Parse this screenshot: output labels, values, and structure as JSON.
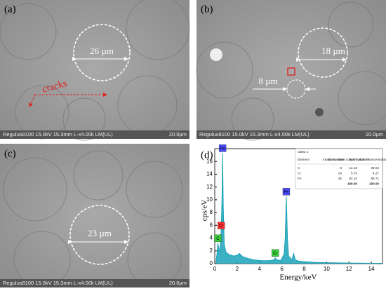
{
  "panels": {
    "a": {
      "label": "(a)",
      "diameter": "26 µm",
      "cracks": "cracks",
      "info": "Regulus8100 15.0kV 15.3mm L-x4.00k LM(UL)",
      "scale": "20.0µm"
    },
    "b": {
      "label": "(b)",
      "diameter": "18 µm",
      "small_diameter": "8 µm",
      "info": "Regulus8100 15.0kV 15.3mm L-x4.00k LM(UL)",
      "scale": "20.0µm"
    },
    "c": {
      "label": "(c)",
      "diameter": "23 µm",
      "info": "Regulus8100 15.0kV 15.3mm L-x4.00k LM(UL)",
      "scale": "20.0µm"
    },
    "d": {
      "label": "(d)"
    }
  },
  "table": {
    "title": "CB02 1",
    "header": [
      "Element",
      "Atomic number",
      "Norm. mass concentration /%",
      "Norm. atomic concentration /%"
    ],
    "rows": [
      [
        "C",
        "6",
        "12.15",
        "39.02"
      ],
      [
        "Cr",
        "24",
        "5.75",
        "4.27"
      ],
      [
        "Fe",
        "26",
        "82.10",
        "56.71"
      ],
      [
        "",
        "",
        "100.00",
        "100.00"
      ]
    ]
  },
  "chart_data": {
    "type": "line",
    "x_label": "Energy/keV",
    "y_label": "cps/eV",
    "color": "#1aa3b8",
    "x": [
      0.1,
      0.2,
      0.28,
      0.4,
      0.5,
      0.57,
      0.65,
      0.7,
      0.76,
      0.85,
      1.0,
      1.3,
      1.7,
      2.0,
      2.2,
      2.5,
      3.0,
      3.5,
      4.0,
      4.5,
      5.0,
      5.3,
      5.41,
      5.55,
      5.9,
      6.2,
      6.3,
      6.4,
      6.5,
      6.6,
      6.9,
      7.06,
      7.2,
      7.5,
      8.0,
      9.0,
      10.0,
      11.0,
      12.0,
      13.0,
      14.0,
      15.0
    ],
    "values": [
      0.3,
      1.5,
      3.2,
      1.8,
      3,
      5.2,
      10,
      17.3,
      9,
      3,
      1.8,
      1.4,
      1.2,
      1.3,
      1.6,
      1.1,
      0.8,
      0.6,
      0.5,
      0.45,
      0.5,
      0.6,
      0.9,
      0.6,
      0.5,
      1.5,
      4,
      10.5,
      4,
      1.2,
      0.6,
      1.6,
      0.6,
      0.4,
      0.3,
      0.2,
      0.15,
      0.12,
      0.1,
      0.08,
      0.06,
      0.05
    ],
    "xlim": [
      0,
      15
    ],
    "ylim": [
      0,
      18
    ],
    "xticks": [
      0,
      2,
      4,
      6,
      8,
      10,
      12,
      14
    ],
    "yticks": [
      0,
      2,
      4,
      6,
      8,
      10,
      12,
      14,
      16
    ],
    "peak_labels": [
      {
        "label": "Fe",
        "x": 0.7,
        "y": 17.3,
        "color": "#4a4aff"
      },
      {
        "label": "Cr",
        "x": 0.57,
        "y": 5.2,
        "color": "#ff3030"
      },
      {
        "label": "C",
        "x": 0.28,
        "y": 3.2,
        "color": "#3ad13a"
      },
      {
        "label": "Cr",
        "x": 5.41,
        "y": 0.9,
        "color": "#3ad13a"
      },
      {
        "label": "Fe",
        "x": 6.4,
        "y": 10.5,
        "color": "#4a4aff"
      }
    ]
  }
}
